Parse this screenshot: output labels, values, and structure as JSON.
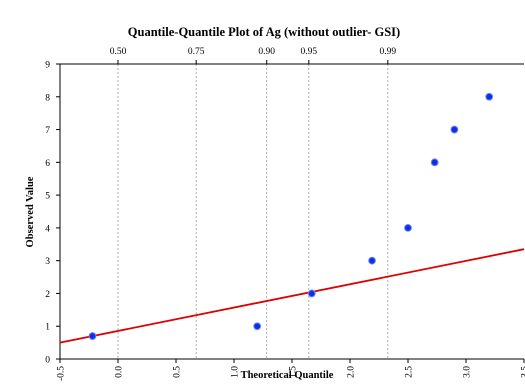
{
  "chart_data": {
    "type": "scatter",
    "title": "Quantile-Quantile Plot of Ag (without outlier- GSI)",
    "xlabel": "Theoretical Quantile",
    "ylabel": "Observed Value",
    "xlim": [
      -0.5,
      3.5
    ],
    "ylim": [
      0,
      9
    ],
    "x_ticks": [
      "-0.5",
      "0.0",
      "0.5",
      "1.0",
      "1.5",
      "2.0",
      "2.5",
      "3.0",
      "3.5"
    ],
    "y_ticks": [
      "0",
      "1",
      "2",
      "3",
      "4",
      "5",
      "6",
      "7",
      "8",
      "9"
    ],
    "top_axis": {
      "label_texts": [
        "0.50",
        "0.75",
        "0.90",
        "0.95",
        "0.99"
      ],
      "positions_x": [
        0.0,
        0.674,
        1.282,
        1.645,
        2.326
      ]
    },
    "points": [
      {
        "x": -0.22,
        "y": 0.7
      },
      {
        "x": 1.2,
        "y": 1.0
      },
      {
        "x": 1.67,
        "y": 2.0
      },
      {
        "x": 2.19,
        "y": 3.0
      },
      {
        "x": 2.5,
        "y": 4.0
      },
      {
        "x": 2.73,
        "y": 6.0
      },
      {
        "x": 2.9,
        "y": 7.0
      },
      {
        "x": 3.2,
        "y": 8.0
      }
    ],
    "fit_line": {
      "color": "#e00000",
      "x": [
        -0.5,
        3.5
      ],
      "y": [
        0.5,
        3.35
      ]
    },
    "grid": "vertical dashed lines at top-axis probabilities",
    "point_color": "#1030e0",
    "axis_color": "#000000"
  }
}
